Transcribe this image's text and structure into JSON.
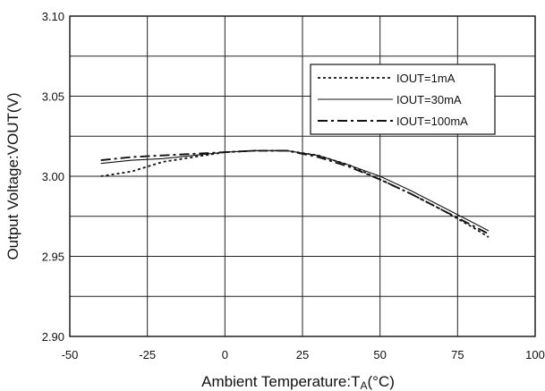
{
  "chart_data": {
    "type": "line",
    "xlabel": "Ambient Temperature:",
    "xlabel_symbol": "T",
    "xlabel_subscript": "A",
    "xlabel_unit": "(°C)",
    "ylabel": "Output Voltage:VOUT(V)",
    "xlim": [
      -50,
      100
    ],
    "ylim": [
      2.9,
      3.1
    ],
    "xticks": [
      -50,
      -25,
      0,
      25,
      50,
      75,
      100
    ],
    "xtick_labels": [
      "-50",
      "-25",
      "0",
      "25",
      "50",
      "75",
      "100"
    ],
    "yticks": [
      2.9,
      2.95,
      3.0,
      3.05,
      3.1
    ],
    "ytick_labels": [
      "2.90",
      "2.95",
      "3.00",
      "3.05",
      "3.10"
    ],
    "grid": true,
    "legend_position": "top-right",
    "series": [
      {
        "name": "IOUT=1mA",
        "style": "dotted",
        "x": [
          -40,
          -30,
          -20,
          -10,
          0,
          10,
          20,
          30,
          40,
          50,
          60,
          70,
          80,
          85
        ],
        "y": [
          3.0,
          3.003,
          3.009,
          3.012,
          3.015,
          3.016,
          3.016,
          3.013,
          3.007,
          2.998,
          2.989,
          2.979,
          2.968,
          2.962
        ]
      },
      {
        "name": "IOUT=30mA",
        "style": "solid",
        "x": [
          -40,
          -30,
          -20,
          -10,
          0,
          10,
          20,
          30,
          40,
          50,
          60,
          70,
          80,
          85
        ],
        "y": [
          3.008,
          3.01,
          3.011,
          3.013,
          3.015,
          3.016,
          3.016,
          3.013,
          3.007,
          3.0,
          2.991,
          2.981,
          2.971,
          2.966
        ]
      },
      {
        "name": "IOUT=100mA",
        "style": "dashdot",
        "x": [
          -40,
          -30,
          -20,
          -10,
          0,
          10,
          20,
          30,
          40,
          50,
          60,
          70,
          80,
          85
        ],
        "y": [
          3.01,
          3.012,
          3.013,
          3.014,
          3.015,
          3.016,
          3.016,
          3.012,
          3.006,
          2.998,
          2.989,
          2.979,
          2.969,
          2.964
        ]
      }
    ]
  }
}
